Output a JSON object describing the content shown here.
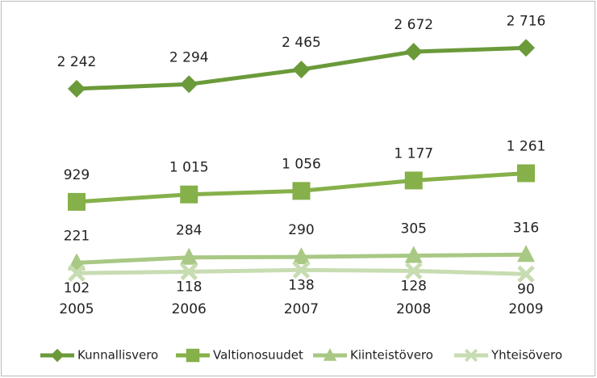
{
  "chart_data": {
    "type": "line",
    "categories": [
      "2005",
      "2006",
      "2007",
      "2008",
      "2009"
    ],
    "ylim": [
      0,
      3000
    ],
    "series": [
      {
        "name": "Kunnallisvero",
        "color": "#6b9a3a",
        "marker": "diamond",
        "label_position": "above",
        "values": [
          2242,
          2294,
          2465,
          2672,
          2716
        ],
        "value_labels": [
          "2 242",
          "2 294",
          "2 465",
          "2 672",
          "2 716"
        ]
      },
      {
        "name": "Valtionosuudet",
        "color": "#86b04a",
        "marker": "square",
        "label_position": "above",
        "values": [
          929,
          1015,
          1056,
          1177,
          1261
        ],
        "value_labels": [
          "929",
          "1 015",
          "1 056",
          "1 177",
          "1 261"
        ]
      },
      {
        "name": "Kiinteistövero",
        "color": "#a8c884",
        "marker": "triangle",
        "label_position": "above",
        "values": [
          221,
          284,
          290,
          305,
          316
        ],
        "value_labels": [
          "221",
          "284",
          "290",
          "305",
          "316"
        ]
      },
      {
        "name": "Yhteisövero",
        "color": "#c8dcb2",
        "marker": "x",
        "label_position": "below",
        "values": [
          102,
          118,
          138,
          128,
          90
        ],
        "value_labels": [
          "102",
          "118",
          "138",
          "128",
          "90"
        ]
      }
    ]
  }
}
